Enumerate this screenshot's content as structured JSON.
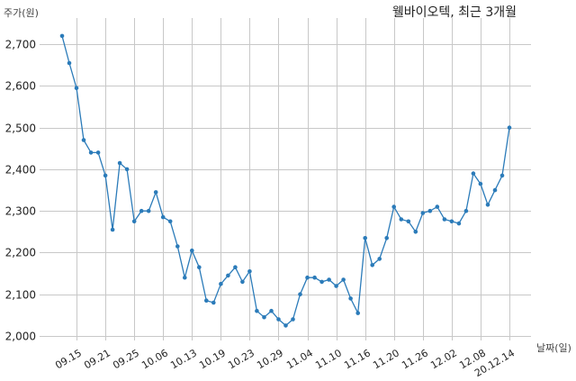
{
  "chart_data": {
    "type": "line",
    "title": "웰바이오텍, 최근 3개월",
    "xlabel": "날짜(일)",
    "ylabel": "주가(원)",
    "ylim": [
      2000,
      2750
    ],
    "yticks": [
      2000,
      2100,
      2200,
      2300,
      2400,
      2500,
      2600,
      2700
    ],
    "ytick_labels": [
      "2,000",
      "2,100",
      "2,200",
      "2,300",
      "2,400",
      "2,500",
      "2,600",
      "2,700"
    ],
    "xtick_labels": [
      "09.15",
      "09.21",
      "09.25",
      "10.06",
      "10.13",
      "10.19",
      "10.23",
      "10.29",
      "11.04",
      "11.10",
      "11.16",
      "11.20",
      "11.26",
      "12.02",
      "12.08",
      "20.12.14"
    ],
    "xtick_index": [
      2,
      6,
      10,
      14,
      18,
      22,
      26,
      30,
      34,
      38,
      42,
      46,
      50,
      54,
      58,
      62
    ],
    "grid": true,
    "color": "#2b7bb9",
    "series": [
      {
        "values": [
          2720,
          2655,
          2595,
          2470,
          2440,
          2440,
          2385,
          2255,
          2415,
          2400,
          2275,
          2300,
          2300,
          2345,
          2285,
          2275,
          2215,
          2140,
          2205,
          2165,
          2085,
          2080,
          2125,
          2145,
          2165,
          2130,
          2155,
          2060,
          2045,
          2060,
          2040,
          2025,
          2040,
          2100,
          2140,
          2140,
          2130,
          2135,
          2120,
          2135,
          2090,
          2055,
          2235,
          2170,
          2185,
          2235,
          2310,
          2280,
          2275,
          2250,
          2295,
          2300,
          2310,
          2280,
          2275,
          2270,
          2300,
          2390,
          2365,
          2315,
          2350,
          2385,
          2500
        ]
      }
    ]
  }
}
